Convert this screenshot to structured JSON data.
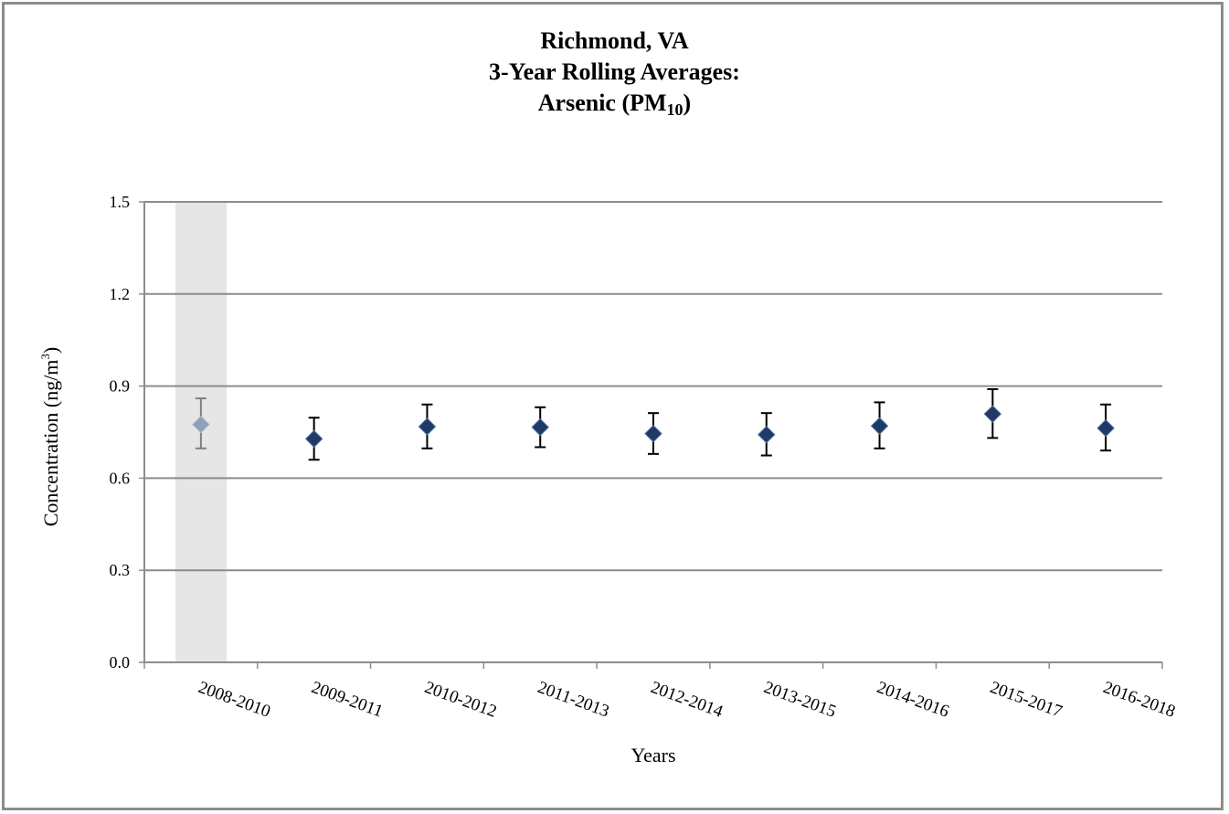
{
  "chart_data": {
    "type": "scatter",
    "title": {
      "line1": "Richmond, VA",
      "line2": "3-Year Rolling Averages:",
      "line3_prefix": "Arsenic (PM",
      "line3_sub": "10",
      "line3_suffix": ")"
    },
    "xlabel": "Years",
    "ylabel": {
      "text": "Concentration (ng/m",
      "sup": "3",
      "suffix": ")"
    },
    "ylim": [
      0,
      1.5
    ],
    "yticks": [
      "0.0",
      "0.3",
      "0.6",
      "0.9",
      "1.2",
      "1.5"
    ],
    "grid": true,
    "categories": [
      "2008-2010",
      "2009-2011",
      "2010-2012",
      "2011-2013",
      "2012-2014",
      "2013-2015",
      "2014-2016",
      "2015-2017",
      "2016-2018"
    ],
    "values": [
      0.775,
      0.728,
      0.768,
      0.766,
      0.745,
      0.742,
      0.77,
      0.809,
      0.763
    ],
    "error_low": [
      0.697,
      0.66,
      0.697,
      0.701,
      0.679,
      0.674,
      0.697,
      0.731,
      0.69
    ],
    "error_high": [
      0.86,
      0.797,
      0.84,
      0.831,
      0.812,
      0.812,
      0.847,
      0.89,
      0.84
    ],
    "highlighted_category": "2008-2010",
    "colors": {
      "marker": "#1f3a64",
      "marker_highlight": "#8da1ba",
      "error_bar": "#000000",
      "error_bar_highlight": "#7f7f7f",
      "highlight_band": "#e6e6e6",
      "grid": "#8c8c8c"
    }
  }
}
